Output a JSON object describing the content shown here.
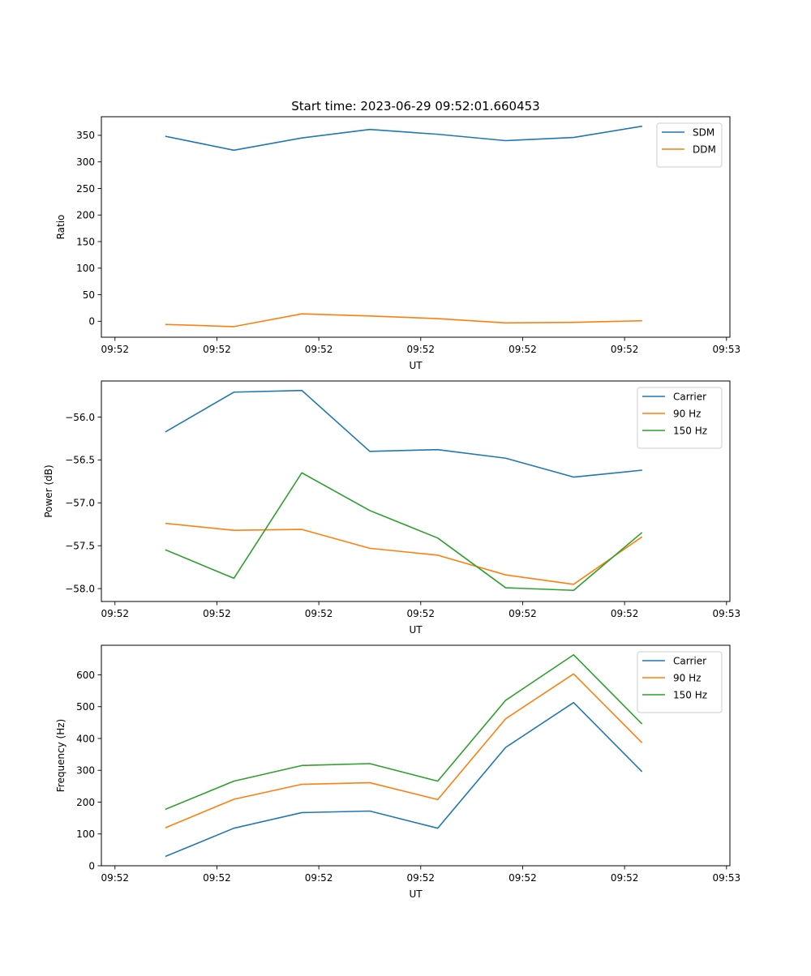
{
  "figure": {
    "suptitle": "Start time: 2023-06-29 09:52:01.660453"
  },
  "chart_data": [
    {
      "type": "line",
      "title": "Start time: 2023-06-29 09:52:01.660453",
      "xlabel": "UT",
      "ylabel": "Ratio",
      "x_tick_labels": [
        "09:52",
        "09:52",
        "09:52",
        "09:52",
        "09:52",
        "09:52",
        "09:53"
      ],
      "x": [
        1.5,
        3.5,
        5.5,
        7.5,
        9.5,
        11.5,
        13.5,
        15.5
      ],
      "xlim": [
        -0.4,
        18.1
      ],
      "x_ticks": [
        0,
        3,
        6,
        9,
        12,
        15,
        18
      ],
      "ylim": [
        -30,
        385
      ],
      "y_ticks": [
        0,
        50,
        100,
        150,
        200,
        250,
        300,
        350
      ],
      "legend_position": "top-right",
      "series": [
        {
          "name": "SDM",
          "color": "#1f77b4",
          "values": [
            348,
            322,
            345,
            361,
            352,
            340,
            346,
            367
          ]
        },
        {
          "name": "DDM",
          "color": "#ff7f0e",
          "values": [
            -6,
            -10,
            14,
            10,
            5,
            -3,
            -2,
            1
          ]
        }
      ]
    },
    {
      "type": "line",
      "title": "",
      "xlabel": "UT",
      "ylabel": "Power (dB)",
      "x_tick_labels": [
        "09:52",
        "09:52",
        "09:52",
        "09:52",
        "09:52",
        "09:52",
        "09:53"
      ],
      "x": [
        1.5,
        3.5,
        5.5,
        7.5,
        9.5,
        11.5,
        13.5,
        15.5
      ],
      "xlim": [
        -0.4,
        18.1
      ],
      "x_ticks": [
        0,
        3,
        6,
        9,
        12,
        15,
        18
      ],
      "ylim": [
        -58.15,
        -55.58
      ],
      "y_ticks": [
        -56.0,
        -56.5,
        -57.0,
        -57.5,
        -58.0
      ],
      "y_tick_labels": [
        "−56.0",
        "−56.5",
        "−57.0",
        "−57.5",
        "−58.0"
      ],
      "legend_position": "top-right",
      "series": [
        {
          "name": "Carrier",
          "color": "#1f77b4",
          "values": [
            -56.17,
            -55.71,
            -55.69,
            -56.4,
            -56.38,
            -56.48,
            -56.7,
            -56.62
          ]
        },
        {
          "name": "90 Hz",
          "color": "#ff7f0e",
          "values": [
            -57.24,
            -57.32,
            -57.31,
            -57.53,
            -57.61,
            -57.84,
            -57.95,
            -57.4
          ]
        },
        {
          "name": "150 Hz",
          "color": "#2ca02c",
          "values": [
            -57.55,
            -57.88,
            -56.65,
            -57.09,
            -57.41,
            -57.99,
            -58.02,
            -57.35
          ]
        }
      ]
    },
    {
      "type": "line",
      "title": "",
      "xlabel": "UT",
      "ylabel": "Frequency (Hz)",
      "x_tick_labels": [
        "09:52",
        "09:52",
        "09:52",
        "09:52",
        "09:52",
        "09:52",
        "09:53"
      ],
      "x": [
        1.5,
        3.5,
        5.5,
        7.5,
        9.5,
        11.5,
        13.5,
        15.5
      ],
      "xlim": [
        -0.4,
        18.1
      ],
      "x_ticks": [
        0,
        3,
        6,
        9,
        12,
        15,
        18
      ],
      "ylim": [
        0,
        693
      ],
      "y_ticks": [
        0,
        100,
        200,
        300,
        400,
        500,
        600
      ],
      "legend_position": "top-right",
      "series": [
        {
          "name": "Carrier",
          "color": "#1f77b4",
          "values": [
            30,
            118,
            167,
            172,
            118,
            372,
            513,
            297
          ]
        },
        {
          "name": "90 Hz",
          "color": "#ff7f0e",
          "values": [
            120,
            209,
            256,
            261,
            208,
            462,
            603,
            388
          ]
        },
        {
          "name": "150 Hz",
          "color": "#2ca02c",
          "values": [
            178,
            266,
            315,
            321,
            266,
            520,
            663,
            447
          ]
        }
      ]
    }
  ]
}
